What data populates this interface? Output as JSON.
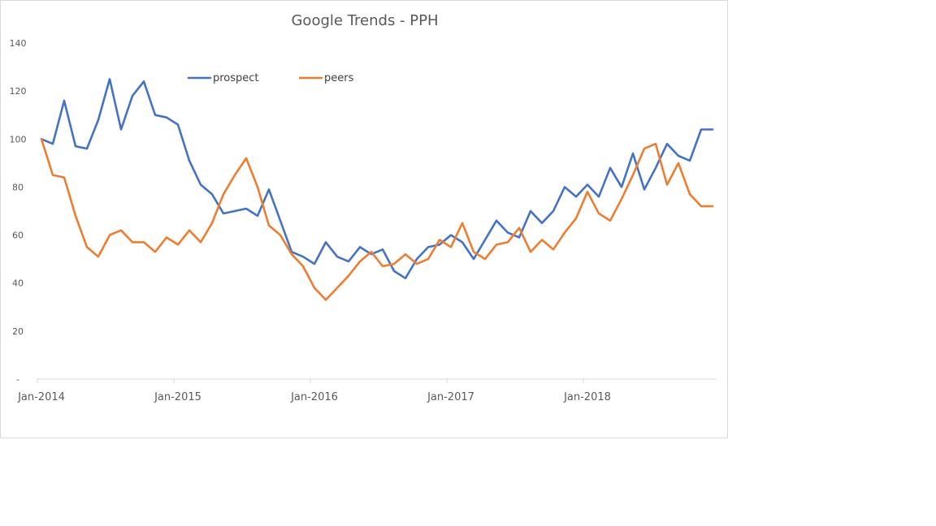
{
  "chart_data": {
    "type": "line",
    "title": "Google Trends - PPH",
    "xlabel": "",
    "ylabel": "",
    "ylim": [
      0,
      140
    ],
    "yticks": [
      0,
      20,
      40,
      60,
      80,
      100,
      120,
      140
    ],
    "ytick_labels": [
      "-",
      "20",
      "40",
      "60",
      "80",
      "100",
      "120",
      "140"
    ],
    "xticks": [
      "Jan-2014",
      "Jan-2015",
      "Jan-2016",
      "Jan-2017",
      "Jan-2018"
    ],
    "grid": false,
    "legend_position": "top-left",
    "x": [
      "2014-01",
      "2014-02",
      "2014-03",
      "2014-04",
      "2014-05",
      "2014-06",
      "2014-07",
      "2014-08",
      "2014-09",
      "2014-10",
      "2014-11",
      "2014-12",
      "2015-01",
      "2015-02",
      "2015-03",
      "2015-04",
      "2015-05",
      "2015-06",
      "2015-07",
      "2015-08",
      "2015-09",
      "2015-10",
      "2015-11",
      "2015-12",
      "2016-01",
      "2016-02",
      "2016-03",
      "2016-04",
      "2016-05",
      "2016-06",
      "2016-07",
      "2016-08",
      "2016-09",
      "2016-10",
      "2016-11",
      "2016-12",
      "2017-01",
      "2017-02",
      "2017-03",
      "2017-04",
      "2017-05",
      "2017-06",
      "2017-07",
      "2017-08",
      "2017-09",
      "2017-10",
      "2017-11",
      "2017-12",
      "2018-01",
      "2018-02",
      "2018-03",
      "2018-04",
      "2018-05",
      "2018-06",
      "2018-07",
      "2018-08",
      "2018-09",
      "2018-10",
      "2018-11",
      "2018-12"
    ],
    "series": [
      {
        "name": "prospect",
        "color": "#4472C4",
        "values": [
          100,
          98,
          116,
          97,
          96,
          108,
          125,
          104,
          118,
          124,
          110,
          109,
          106,
          91,
          81,
          77,
          69,
          70,
          71,
          68,
          79,
          66,
          53,
          51,
          48,
          57,
          51,
          49,
          55,
          52,
          54,
          45,
          42,
          50,
          55,
          56,
          60,
          57,
          50,
          58,
          66,
          61,
          59,
          70,
          65,
          70,
          80,
          76,
          81,
          76,
          88,
          80,
          94,
          79,
          88,
          98,
          93,
          91,
          104,
          104
        ]
      },
      {
        "name": "peers",
        "color": "#ED7D31",
        "values": [
          100,
          85,
          84,
          68,
          55,
          51,
          60,
          62,
          57,
          57,
          53,
          59,
          56,
          62,
          57,
          65,
          77,
          85,
          92,
          80,
          64,
          60,
          52,
          47,
          38,
          33,
          38,
          43,
          49,
          53,
          47,
          48,
          52,
          48,
          50,
          58,
          55,
          65,
          53,
          50,
          56,
          57,
          63,
          53,
          58,
          54,
          61,
          67,
          78,
          69,
          66,
          75,
          85,
          96,
          98,
          81,
          90,
          77,
          72,
          72
        ]
      }
    ]
  }
}
